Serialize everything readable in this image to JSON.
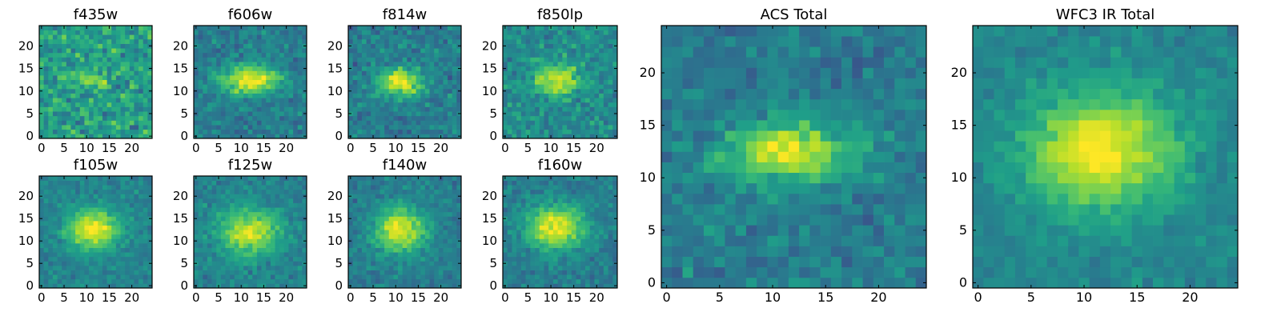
{
  "figure": {
    "colormap": "viridis",
    "noise_seed": 7
  },
  "chart_data": [
    {
      "type": "heatmap",
      "title": "f435w",
      "ticks_x": [
        "0",
        "5",
        "10",
        "15",
        "20"
      ],
      "ticks_y": [
        "0",
        "5",
        "10",
        "15",
        "20"
      ],
      "grid_size": 25,
      "source": {
        "cx": 11,
        "cy": 12.5,
        "sx": 2.5,
        "sy": 1.5,
        "amp": 0.28
      },
      "background": 0.55,
      "noise": 0.28
    },
    {
      "type": "heatmap",
      "title": "f606w",
      "ticks_x": [
        "0",
        "5",
        "10",
        "15",
        "20"
      ],
      "ticks_y": [
        "0",
        "5",
        "10",
        "15",
        "20"
      ],
      "grid_size": 25,
      "source": {
        "cx": 12,
        "cy": 12.5,
        "sx": 4.5,
        "sy": 2.2,
        "amp": 0.6
      },
      "background": 0.42,
      "noise": 0.18
    },
    {
      "type": "heatmap",
      "title": "f814w",
      "ticks_x": [
        "0",
        "5",
        "10",
        "15",
        "20"
      ],
      "ticks_y": [
        "0",
        "5",
        "10",
        "15",
        "20"
      ],
      "grid_size": 25,
      "source": {
        "cx": 11,
        "cy": 12,
        "sx": 3.5,
        "sy": 2.2,
        "amp": 0.55
      },
      "background": 0.42,
      "noise": 0.2
    },
    {
      "type": "heatmap",
      "title": "f850lp",
      "ticks_x": [
        "0",
        "5",
        "10",
        "15",
        "20"
      ],
      "ticks_y": [
        "0",
        "5",
        "10",
        "15",
        "20"
      ],
      "grid_size": 25,
      "source": {
        "cx": 11.5,
        "cy": 12.5,
        "sx": 3.5,
        "sy": 2.5,
        "amp": 0.45
      },
      "background": 0.48,
      "noise": 0.22
    },
    {
      "type": "heatmap",
      "title": "f105w",
      "ticks_x": [
        "0",
        "5",
        "10",
        "15",
        "20"
      ],
      "ticks_y": [
        "0",
        "5",
        "10",
        "15",
        "20"
      ],
      "grid_size": 25,
      "source": {
        "cx": 11.5,
        "cy": 12.5,
        "sx": 4,
        "sy": 3,
        "amp": 0.55
      },
      "background": 0.45,
      "noise": 0.14
    },
    {
      "type": "heatmap",
      "title": "f125w",
      "ticks_x": [
        "0",
        "5",
        "10",
        "15",
        "20"
      ],
      "ticks_y": [
        "0",
        "5",
        "10",
        "15",
        "20"
      ],
      "grid_size": 25,
      "source": {
        "cx": 12,
        "cy": 12,
        "sx": 4.5,
        "sy": 3.5,
        "amp": 0.5
      },
      "background": 0.45,
      "noise": 0.15
    },
    {
      "type": "heatmap",
      "title": "f140w",
      "ticks_x": [
        "0",
        "5",
        "10",
        "15",
        "20"
      ],
      "ticks_y": [
        "0",
        "5",
        "10",
        "15",
        "20"
      ],
      "grid_size": 25,
      "source": {
        "cx": 11,
        "cy": 12.5,
        "sx": 4,
        "sy": 3.5,
        "amp": 0.55
      },
      "background": 0.42,
      "noise": 0.15
    },
    {
      "type": "heatmap",
      "title": "f160w",
      "ticks_x": [
        "0",
        "5",
        "10",
        "15",
        "20"
      ],
      "ticks_y": [
        "0",
        "5",
        "10",
        "15",
        "20"
      ],
      "grid_size": 25,
      "source": {
        "cx": 11,
        "cy": 13,
        "sx": 4.5,
        "sy": 3.5,
        "amp": 0.55
      },
      "background": 0.42,
      "noise": 0.15
    },
    {
      "type": "heatmap",
      "title": "ACS Total",
      "ticks_x": [
        "0",
        "5",
        "10",
        "15",
        "20"
      ],
      "ticks_y": [
        "0",
        "5",
        "10",
        "15",
        "20"
      ],
      "grid_size": 25,
      "source": {
        "cx": 11.5,
        "cy": 12.5,
        "sx": 4,
        "sy": 2,
        "amp": 0.55
      },
      "background": 0.42,
      "noise": 0.17
    },
    {
      "type": "heatmap",
      "title": "WFC3 IR Total",
      "ticks_x": [
        "0",
        "5",
        "10",
        "15",
        "20"
      ],
      "ticks_y": [
        "0",
        "5",
        "10",
        "15",
        "20"
      ],
      "grid_size": 25,
      "source": {
        "cx": 11.5,
        "cy": 12.5,
        "sx": 5,
        "sy": 4,
        "amp": 0.55
      },
      "background": 0.45,
      "noise": 0.12
    }
  ]
}
